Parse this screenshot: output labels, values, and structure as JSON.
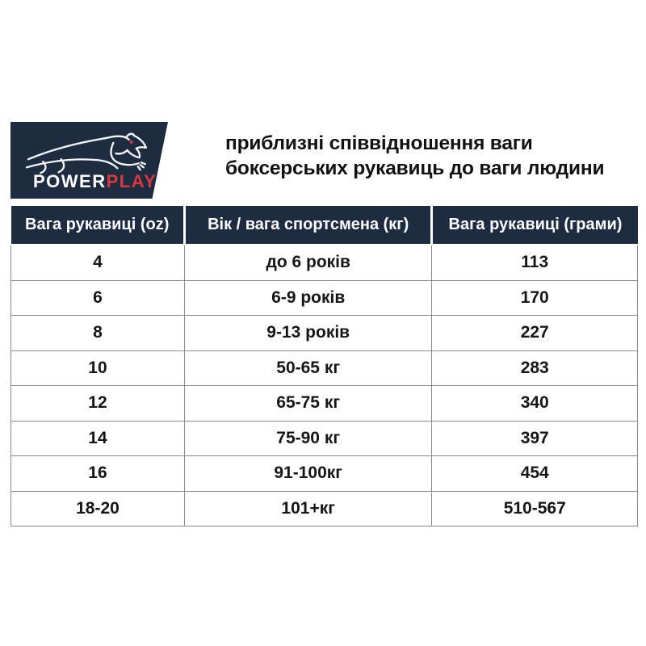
{
  "logo": {
    "power": "POWER",
    "play": "PLAY",
    "registered": "®"
  },
  "title": {
    "line1": "приблизні співвідношення ваги",
    "line2": "боксерських рукавиць до ваги людини"
  },
  "colors": {
    "navy": "#1e2c42",
    "red": "#d8393f",
    "border_gray": "#8c8c8c",
    "text_black": "#161616"
  },
  "chart_data": {
    "type": "table",
    "title": "приблизні співвідношення ваги боксерських рукавиць до ваги людини",
    "columns": [
      "Вага рукавиці (oz)",
      "Вік / вага спортсмена (кг)",
      "Вага рукавиці (грами)"
    ],
    "rows": [
      [
        "4",
        "до 6 років",
        "113"
      ],
      [
        "6",
        "6-9 років",
        "170"
      ],
      [
        "8",
        "9-13 років",
        "227"
      ],
      [
        "10",
        "50-65 кг",
        "283"
      ],
      [
        "12",
        "65-75 кг",
        "340"
      ],
      [
        "14",
        "75-90 кг",
        "397"
      ],
      [
        "16",
        "91-100кг",
        "454"
      ],
      [
        "18-20",
        "101+кг",
        "510-567"
      ]
    ]
  }
}
